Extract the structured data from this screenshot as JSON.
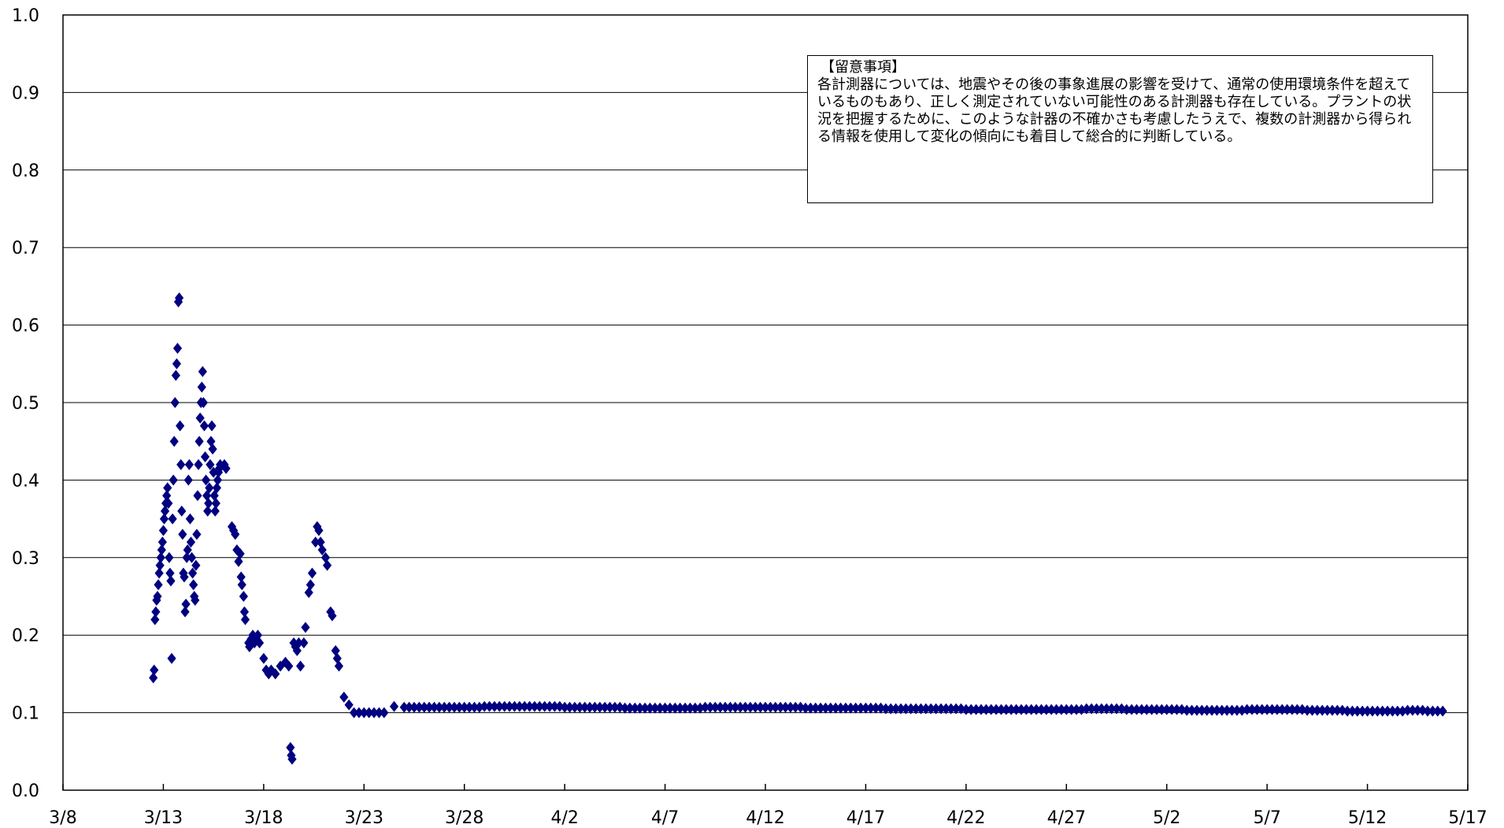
{
  "chart_data": {
    "type": "scatter",
    "title": "",
    "xlabel": "",
    "ylabel": "",
    "ylim": [
      0.0,
      1.0
    ],
    "xlim": [
      "3/8",
      "5/17"
    ],
    "y_ticks": [
      "0.0",
      "0.1",
      "0.2",
      "0.3",
      "0.4",
      "0.5",
      "0.6",
      "0.7",
      "0.8",
      "0.9",
      "1.0"
    ],
    "x_ticks": [
      "3/8",
      "3/13",
      "3/18",
      "3/23",
      "3/28",
      "4/2",
      "4/7",
      "4/12",
      "4/17",
      "4/22",
      "4/27",
      "5/2",
      "5/7",
      "5/12",
      "5/17"
    ],
    "grid": "horizontal",
    "marker": "diamond",
    "color": "#000080",
    "series": [
      {
        "points": [
          [
            "3/12 12:00",
            0.145
          ],
          [
            "3/12 13:00",
            0.155
          ],
          [
            "3/12 14:00",
            0.22
          ],
          [
            "3/12 15:00",
            0.23
          ],
          [
            "3/12 16:00",
            0.245
          ],
          [
            "3/12 17:00",
            0.25
          ],
          [
            "3/12 18:00",
            0.265
          ],
          [
            "3/12 19:00",
            0.28
          ],
          [
            "3/12 20:00",
            0.29
          ],
          [
            "3/12 21:00",
            0.3
          ],
          [
            "3/12 22:00",
            0.31
          ],
          [
            "3/12 23:00",
            0.32
          ],
          [
            "3/13 00:00",
            0.335
          ],
          [
            "3/13 01:00",
            0.35
          ],
          [
            "3/13 02:00",
            0.36
          ],
          [
            "3/13 03:00",
            0.37
          ],
          [
            "3/13 04:00",
            0.38
          ],
          [
            "3/13 05:00",
            0.39
          ],
          [
            "3/13 06:00",
            0.37
          ],
          [
            "3/13 07:00",
            0.3
          ],
          [
            "3/13 08:00",
            0.28
          ],
          [
            "3/13 09:00",
            0.27
          ],
          [
            "3/13 10:00",
            0.17
          ],
          [
            "3/13 11:00",
            0.35
          ],
          [
            "3/13 12:00",
            0.4
          ],
          [
            "3/13 13:00",
            0.45
          ],
          [
            "3/13 14:00",
            0.5
          ],
          [
            "3/13 15:00",
            0.535
          ],
          [
            "3/13 16:00",
            0.55
          ],
          [
            "3/13 17:00",
            0.57
          ],
          [
            "3/13 18:00",
            0.63
          ],
          [
            "3/13 19:00",
            0.635
          ],
          [
            "3/13 20:00",
            0.47
          ],
          [
            "3/13 21:00",
            0.42
          ],
          [
            "3/13 22:00",
            0.36
          ],
          [
            "3/13 23:00",
            0.33
          ],
          [
            "3/14 00:00",
            0.28
          ],
          [
            "3/14 01:00",
            0.275
          ],
          [
            "3/14 02:00",
            0.23
          ],
          [
            "3/14 03:00",
            0.24
          ],
          [
            "3/14 04:00",
            0.3
          ],
          [
            "3/14 05:00",
            0.31
          ],
          [
            "3/14 06:00",
            0.4
          ],
          [
            "3/14 07:00",
            0.42
          ],
          [
            "3/14 08:00",
            0.35
          ],
          [
            "3/14 09:00",
            0.32
          ],
          [
            "3/14 10:00",
            0.3
          ],
          [
            "3/14 11:00",
            0.28
          ],
          [
            "3/14 12:00",
            0.265
          ],
          [
            "3/14 13:00",
            0.25
          ],
          [
            "3/14 14:00",
            0.245
          ],
          [
            "3/14 15:00",
            0.29
          ],
          [
            "3/14 16:00",
            0.33
          ],
          [
            "3/14 17:00",
            0.38
          ],
          [
            "3/14 18:00",
            0.42
          ],
          [
            "3/14 19:00",
            0.45
          ],
          [
            "3/14 20:00",
            0.48
          ],
          [
            "3/14 21:00",
            0.5
          ],
          [
            "3/14 22:00",
            0.52
          ],
          [
            "3/14 23:00",
            0.54
          ],
          [
            "3/15 00:00",
            0.5
          ],
          [
            "3/15 01:00",
            0.47
          ],
          [
            "3/15 02:00",
            0.43
          ],
          [
            "3/15 03:00",
            0.4
          ],
          [
            "3/15 04:00",
            0.38
          ],
          [
            "3/15 05:00",
            0.36
          ],
          [
            "3/15 06:00",
            0.37
          ],
          [
            "3/15 07:00",
            0.39
          ],
          [
            "3/15 08:00",
            0.42
          ],
          [
            "3/15 09:00",
            0.45
          ],
          [
            "3/15 10:00",
            0.47
          ],
          [
            "3/15 11:00",
            0.44
          ],
          [
            "3/15 12:00",
            0.41
          ],
          [
            "3/15 13:00",
            0.38
          ],
          [
            "3/15 14:00",
            0.36
          ],
          [
            "3/15 15:00",
            0.37
          ],
          [
            "3/15 16:00",
            0.39
          ],
          [
            "3/15 17:00",
            0.4
          ],
          [
            "3/15 18:00",
            0.41
          ],
          [
            "3/15 19:00",
            0.415
          ],
          [
            "3/15 20:00",
            0.42
          ],
          [
            "3/16 01:00",
            0.42
          ],
          [
            "3/16 03:00",
            0.415
          ],
          [
            "3/16 10:00",
            0.34
          ],
          [
            "3/16 12:00",
            0.335
          ],
          [
            "3/16 14:00",
            0.33
          ],
          [
            "3/16 16:00",
            0.31
          ],
          [
            "3/16 18:00",
            0.295
          ],
          [
            "3/16 20:00",
            0.305
          ],
          [
            "3/16 21:00",
            0.275
          ],
          [
            "3/16 22:00",
            0.265
          ],
          [
            "3/17 00:00",
            0.25
          ],
          [
            "3/17 01:00",
            0.23
          ],
          [
            "3/17 02:00",
            0.22
          ],
          [
            "3/17 06:00",
            0.19
          ],
          [
            "3/17 07:00",
            0.185
          ],
          [
            "3/17 09:00",
            0.195
          ],
          [
            "3/17 11:00",
            0.2
          ],
          [
            "3/17 13:00",
            0.19
          ],
          [
            "3/17 15:00",
            0.195
          ],
          [
            "3/17 17:00",
            0.2
          ],
          [
            "3/17 19:00",
            0.19
          ],
          [
            "3/18 00:00",
            0.17
          ],
          [
            "3/18 03:00",
            0.155
          ],
          [
            "3/18 06:00",
            0.15
          ],
          [
            "3/18 09:00",
            0.155
          ],
          [
            "3/18 14:00",
            0.15
          ],
          [
            "3/18 20:00",
            0.16
          ],
          [
            "3/19 02:00",
            0.165
          ],
          [
            "3/19 06:00",
            0.16
          ],
          [
            "3/19 08:00",
            0.055
          ],
          [
            "3/19 09:00",
            0.045
          ],
          [
            "3/19 10:00",
            0.04
          ],
          [
            "3/19 12:00",
            0.19
          ],
          [
            "3/19 14:00",
            0.185
          ],
          [
            "3/19 16:00",
            0.18
          ],
          [
            "3/19 18:00",
            0.19
          ],
          [
            "3/19 20:00",
            0.16
          ],
          [
            "3/20 00:00",
            0.19
          ],
          [
            "3/20 02:00",
            0.21
          ],
          [
            "3/20 06:00",
            0.255
          ],
          [
            "3/20 08:00",
            0.265
          ],
          [
            "3/20 10:00",
            0.28
          ],
          [
            "3/20 14:00",
            0.32
          ],
          [
            "3/20 16:00",
            0.34
          ],
          [
            "3/20 18:00",
            0.335
          ],
          [
            "3/20 20:00",
            0.32
          ],
          [
            "3/20 22:00",
            0.31
          ],
          [
            "3/21 02:00",
            0.3
          ],
          [
            "3/21 04:00",
            0.29
          ],
          [
            "3/21 08:00",
            0.23
          ],
          [
            "3/21 10:00",
            0.225
          ],
          [
            "3/21 14:00",
            0.18
          ],
          [
            "3/21 16:00",
            0.17
          ],
          [
            "3/21 18:00",
            0.16
          ],
          [
            "3/22 00:00",
            0.12
          ],
          [
            "3/22 06:00",
            0.11
          ],
          [
            "3/22 12:00",
            0.1
          ],
          [
            "3/22 18:00",
            0.1
          ],
          [
            "3/23 00:00",
            0.1
          ],
          [
            "3/23 06:00",
            0.1
          ],
          [
            "3/23 12:00",
            0.1
          ],
          [
            "3/23 18:00",
            0.1
          ],
          [
            "3/24 00:00",
            0.1
          ],
          [
            "3/24 12:00",
            0.108
          ]
        ],
        "plateau_daily": {
          "from": "3/25",
          "to": "5/15",
          "points_per_day": 4,
          "values": [
            0.107,
            0.107,
            0.107,
            0.107,
            0.108,
            0.108,
            0.108,
            0.108,
            0.107,
            0.107,
            0.107,
            0.106,
            0.106,
            0.106,
            0.106,
            0.107,
            0.107,
            0.107,
            0.107,
            0.107,
            0.106,
            0.106,
            0.106,
            0.106,
            0.105,
            0.105,
            0.105,
            0.105,
            0.104,
            0.104,
            0.104,
            0.104,
            0.104,
            0.104,
            0.105,
            0.105,
            0.104,
            0.104,
            0.104,
            0.103,
            0.103,
            0.103,
            0.104,
            0.104,
            0.104,
            0.103,
            0.103,
            0.102,
            0.102,
            0.102,
            0.103,
            0.102
          ]
        }
      }
    ],
    "annotation": {
      "title": "【留意事項】",
      "body": "各計測器については、地震やその後の事象進展の影響を受けて、通常の使用環境条件を超えているものもあり、正しく測定されていない可能性のある計測器も存在している。プラントの状況を把握するために、このような計器の不確かさも考慮したうえで、複数の計測器から得られる情報を使用して変化の傾向にも着目して総合的に判断している。"
    }
  }
}
